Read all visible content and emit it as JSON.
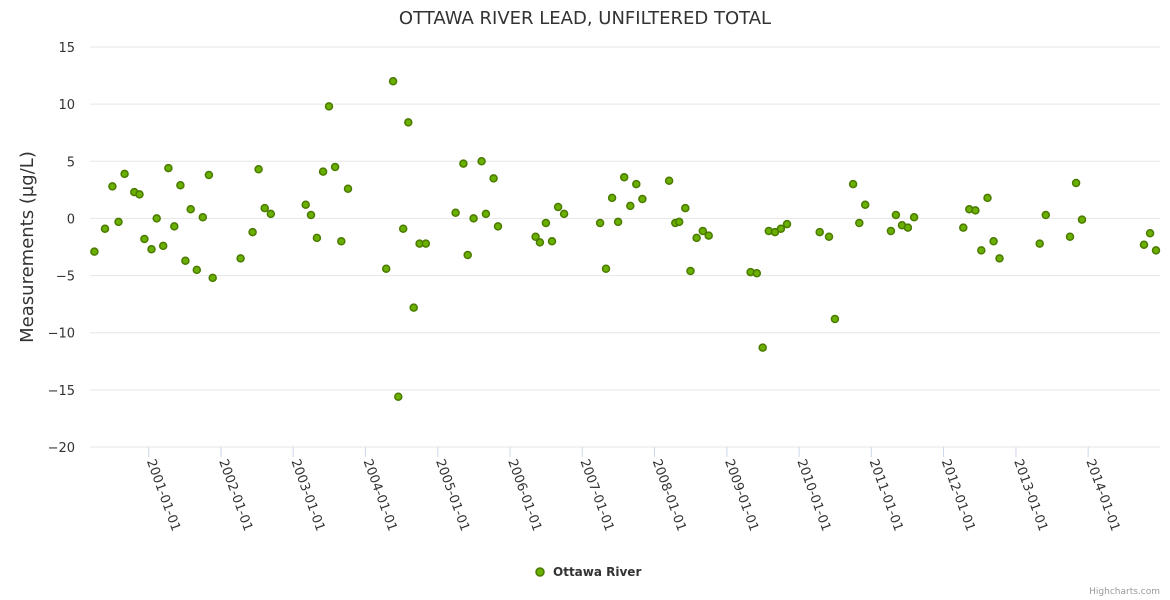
{
  "chart_data": {
    "type": "scatter",
    "title": "OTTAWA RIVER LEAD, UNFILTERED TOTAL",
    "ylabel": "Measurements (µg/L)",
    "xlabel": "",
    "ylim": [
      -20,
      15
    ],
    "yticks": [
      15,
      10,
      5,
      0,
      -5,
      -10,
      -15,
      -20
    ],
    "ytick_labels": [
      "15",
      "10",
      "5",
      "0",
      "−5",
      "−10",
      "−15",
      "−20"
    ],
    "xlim": [
      "2000-03-10",
      "2014-12-30"
    ],
    "xtick_labels": [
      "2001-01-01",
      "2002-01-01",
      "2003-01-01",
      "2004-01-01",
      "2005-01-01",
      "2006-01-01",
      "2007-01-01",
      "2008-01-01",
      "2009-01-01",
      "2010-01-01",
      "2011-01-01",
      "2012-01-01",
      "2013-01-01",
      "2014-01-01"
    ],
    "grid": true,
    "legend_position": "bottom-center",
    "series": [
      {
        "name": "Ottawa River",
        "color": "#7cb518",
        "marker_fill": "#6ab000",
        "marker_stroke": "#4a7a00",
        "points": [
          [
            "2000-04-01",
            -2.9
          ],
          [
            "2000-05-25",
            -0.9
          ],
          [
            "2000-07-01",
            2.8
          ],
          [
            "2000-08-01",
            -0.3
          ],
          [
            "2000-09-01",
            3.9
          ],
          [
            "2000-10-20",
            2.3
          ],
          [
            "2000-11-15",
            2.1
          ],
          [
            "2000-12-10",
            -1.8
          ],
          [
            "2001-01-15",
            -2.7
          ],
          [
            "2001-02-10",
            0.0
          ],
          [
            "2001-03-15",
            -2.4
          ],
          [
            "2001-04-10",
            4.4
          ],
          [
            "2001-05-10",
            -0.7
          ],
          [
            "2001-06-10",
            2.9
          ],
          [
            "2001-07-05",
            -3.7
          ],
          [
            "2001-08-01",
            0.8
          ],
          [
            "2001-09-01",
            -4.5
          ],
          [
            "2001-10-01",
            0.1
          ],
          [
            "2001-11-01",
            3.8
          ],
          [
            "2001-11-20",
            -5.2
          ],
          [
            "2002-04-10",
            -3.5
          ],
          [
            "2002-06-10",
            -1.2
          ],
          [
            "2002-07-10",
            4.3
          ],
          [
            "2002-08-10",
            0.9
          ],
          [
            "2002-09-10",
            0.4
          ],
          [
            "2003-03-05",
            1.2
          ],
          [
            "2003-04-01",
            0.3
          ],
          [
            "2003-05-01",
            -1.7
          ],
          [
            "2003-06-01",
            4.1
          ],
          [
            "2003-07-01",
            9.8
          ],
          [
            "2003-08-01",
            4.5
          ],
          [
            "2003-09-01",
            -2.0
          ],
          [
            "2003-10-05",
            2.6
          ],
          [
            "2004-04-15",
            -4.4
          ],
          [
            "2004-05-20",
            12.0
          ],
          [
            "2004-06-15",
            -15.6
          ],
          [
            "2004-07-10",
            -0.9
          ],
          [
            "2004-08-05",
            8.4
          ],
          [
            "2004-09-01",
            -7.8
          ],
          [
            "2004-10-01",
            -2.2
          ],
          [
            "2004-11-01",
            -2.2
          ],
          [
            "2005-04-01",
            0.5
          ],
          [
            "2005-05-10",
            4.8
          ],
          [
            "2005-06-01",
            -3.2
          ],
          [
            "2005-07-01",
            0.0
          ],
          [
            "2005-08-10",
            5.0
          ],
          [
            "2005-09-01",
            0.4
          ],
          [
            "2005-10-10",
            3.5
          ],
          [
            "2005-11-01",
            -0.7
          ],
          [
            "2006-05-10",
            -1.6
          ],
          [
            "2006-06-01",
            -2.1
          ],
          [
            "2006-07-01",
            -0.4
          ],
          [
            "2006-08-01",
            -2.0
          ],
          [
            "2006-09-01",
            1.0
          ],
          [
            "2006-10-01",
            0.4
          ],
          [
            "2007-04-01",
            -0.4
          ],
          [
            "2007-05-01",
            -4.4
          ],
          [
            "2007-06-01",
            1.8
          ],
          [
            "2007-07-01",
            -0.3
          ],
          [
            "2007-08-01",
            3.6
          ],
          [
            "2007-09-01",
            1.1
          ],
          [
            "2007-10-01",
            3.0
          ],
          [
            "2007-11-01",
            1.7
          ],
          [
            "2008-03-15",
            3.3
          ],
          [
            "2008-04-15",
            -0.4
          ],
          [
            "2008-05-05",
            -0.3
          ],
          [
            "2008-06-05",
            0.9
          ],
          [
            "2008-07-01",
            -4.6
          ],
          [
            "2008-08-01",
            -1.7
          ],
          [
            "2008-09-01",
            -1.1
          ],
          [
            "2008-10-01",
            -1.5
          ],
          [
            "2009-05-01",
            -4.7
          ],
          [
            "2009-06-01",
            -4.8
          ],
          [
            "2009-07-01",
            -11.3
          ],
          [
            "2009-08-01",
            -1.1
          ],
          [
            "2009-09-01",
            -1.2
          ],
          [
            "2009-10-01",
            -0.9
          ],
          [
            "2009-11-01",
            -0.5
          ],
          [
            "2010-04-15",
            -1.2
          ],
          [
            "2010-06-01",
            -1.6
          ],
          [
            "2010-07-01",
            -8.8
          ],
          [
            "2010-10-01",
            3.0
          ],
          [
            "2010-11-01",
            -0.4
          ],
          [
            "2010-12-01",
            1.2
          ],
          [
            "2011-04-10",
            -1.1
          ],
          [
            "2011-05-05",
            0.3
          ],
          [
            "2011-06-05",
            -0.6
          ],
          [
            "2011-07-05",
            -0.8
          ],
          [
            "2011-08-05",
            0.1
          ],
          [
            "2012-04-10",
            -0.8
          ],
          [
            "2012-05-10",
            0.8
          ],
          [
            "2012-06-10",
            0.7
          ],
          [
            "2012-07-10",
            -2.8
          ],
          [
            "2012-08-10",
            1.8
          ],
          [
            "2012-09-10",
            -2.0
          ],
          [
            "2012-10-10",
            -3.5
          ],
          [
            "2013-05-01",
            -2.2
          ],
          [
            "2013-06-01",
            0.3
          ],
          [
            "2013-10-01",
            -1.6
          ],
          [
            "2013-11-01",
            3.1
          ],
          [
            "2013-12-01",
            -0.1
          ],
          [
            "2014-10-10",
            -2.3
          ],
          [
            "2014-11-10",
            -1.3
          ],
          [
            "2014-12-10",
            -2.8
          ]
        ]
      }
    ]
  },
  "credits": "Highcharts.com"
}
